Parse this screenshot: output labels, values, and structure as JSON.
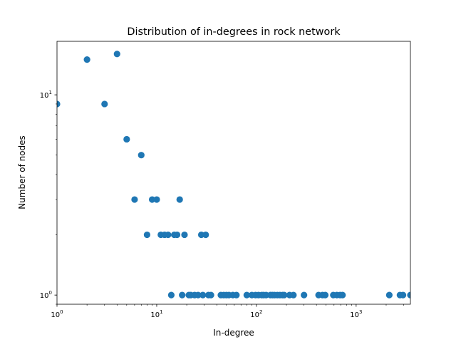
{
  "chart_data": {
    "type": "scatter",
    "title": "Distribution of in-degrees in rock network",
    "xlabel": "In-degree",
    "ylabel": "Number of nodes",
    "xscale": "log",
    "yscale": "log",
    "xlim": [
      1,
      3500
    ],
    "ylim": [
      0.9,
      18.5
    ],
    "grid": false,
    "marker_color": "#1f77b4",
    "x_ticks": [
      {
        "value": 1,
        "label": "10",
        "exp": "0"
      },
      {
        "value": 10,
        "label": "10",
        "exp": "1"
      },
      {
        "value": 100,
        "label": "10",
        "exp": "2"
      },
      {
        "value": 1000,
        "label": "10",
        "exp": "3"
      }
    ],
    "y_ticks": [
      {
        "value": 1,
        "label": "10",
        "exp": "0"
      },
      {
        "value": 10,
        "label": "10",
        "exp": "1"
      }
    ],
    "points": [
      {
        "x": 1,
        "y": 9
      },
      {
        "x": 2,
        "y": 15
      },
      {
        "x": 3,
        "y": 9
      },
      {
        "x": 4,
        "y": 16
      },
      {
        "x": 5,
        "y": 6
      },
      {
        "x": 6,
        "y": 3
      },
      {
        "x": 7,
        "y": 5
      },
      {
        "x": 8,
        "y": 2
      },
      {
        "x": 9,
        "y": 3
      },
      {
        "x": 10,
        "y": 3
      },
      {
        "x": 11,
        "y": 2
      },
      {
        "x": 12,
        "y": 2
      },
      {
        "x": 13,
        "y": 2
      },
      {
        "x": 15,
        "y": 2
      },
      {
        "x": 16,
        "y": 2
      },
      {
        "x": 17,
        "y": 3
      },
      {
        "x": 19,
        "y": 2
      },
      {
        "x": 28,
        "y": 2
      },
      {
        "x": 31,
        "y": 2
      },
      {
        "x": 14,
        "y": 1
      },
      {
        "x": 18,
        "y": 1
      },
      {
        "x": 21,
        "y": 1
      },
      {
        "x": 22,
        "y": 1
      },
      {
        "x": 24,
        "y": 1
      },
      {
        "x": 26,
        "y": 1
      },
      {
        "x": 29,
        "y": 1
      },
      {
        "x": 33,
        "y": 1
      },
      {
        "x": 35,
        "y": 1
      },
      {
        "x": 44,
        "y": 1
      },
      {
        "x": 47,
        "y": 1
      },
      {
        "x": 50,
        "y": 1
      },
      {
        "x": 53,
        "y": 1
      },
      {
        "x": 58,
        "y": 1
      },
      {
        "x": 63,
        "y": 1
      },
      {
        "x": 80,
        "y": 1
      },
      {
        "x": 90,
        "y": 1
      },
      {
        "x": 98,
        "y": 1
      },
      {
        "x": 105,
        "y": 1
      },
      {
        "x": 113,
        "y": 1
      },
      {
        "x": 118,
        "y": 1
      },
      {
        "x": 125,
        "y": 1
      },
      {
        "x": 138,
        "y": 1
      },
      {
        "x": 145,
        "y": 1
      },
      {
        "x": 152,
        "y": 1
      },
      {
        "x": 162,
        "y": 1
      },
      {
        "x": 172,
        "y": 1
      },
      {
        "x": 183,
        "y": 1
      },
      {
        "x": 190,
        "y": 1
      },
      {
        "x": 215,
        "y": 1
      },
      {
        "x": 235,
        "y": 1
      },
      {
        "x": 300,
        "y": 1
      },
      {
        "x": 420,
        "y": 1
      },
      {
        "x": 460,
        "y": 1
      },
      {
        "x": 490,
        "y": 1
      },
      {
        "x": 590,
        "y": 1
      },
      {
        "x": 640,
        "y": 1
      },
      {
        "x": 690,
        "y": 1
      },
      {
        "x": 730,
        "y": 1
      },
      {
        "x": 2150,
        "y": 1
      },
      {
        "x": 2750,
        "y": 1
      },
      {
        "x": 2950,
        "y": 1
      },
      {
        "x": 3500,
        "y": 1
      }
    ]
  }
}
